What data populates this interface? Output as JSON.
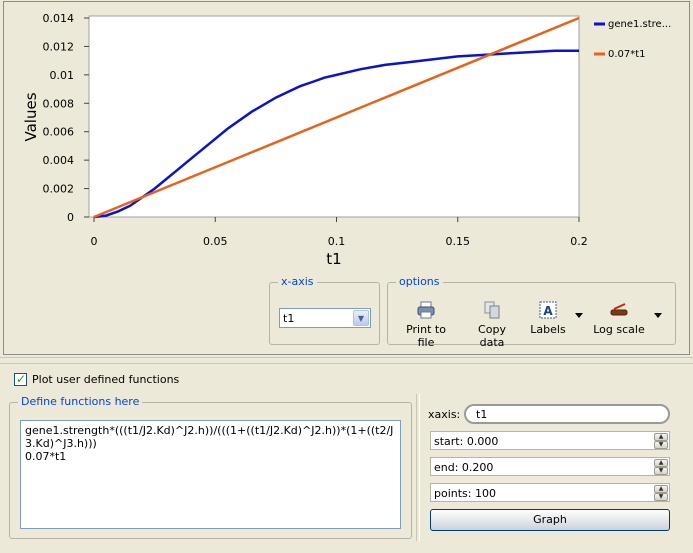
{
  "chart": {
    "ylabel": "Values",
    "xlabel": "t1",
    "y_ticks": [
      "0.014",
      "0.012",
      "0.01",
      "0.008",
      "0.006",
      "0.004",
      "0.002",
      "0"
    ],
    "x_ticks": [
      "0",
      "0.05",
      "0.1",
      "0.15",
      "0.2"
    ],
    "legend": [
      {
        "label": "gene1.stre...",
        "color": "#0a14c8"
      },
      {
        "label": "0.07*t1",
        "color": "#e8631a"
      }
    ]
  },
  "chart_data": {
    "type": "line",
    "xlabel": "t1",
    "ylabel": "Values",
    "xlim": [
      0,
      0.2
    ],
    "ylim": [
      0,
      0.014
    ],
    "series": [
      {
        "name": "gene1.stre...",
        "color": "#0a14c8",
        "x": [
          0,
          0.005,
          0.01,
          0.015,
          0.02,
          0.025,
          0.03,
          0.035,
          0.04,
          0.045,
          0.05,
          0.055,
          0.06,
          0.065,
          0.07,
          0.075,
          0.08,
          0.085,
          0.09,
          0.095,
          0.1,
          0.11,
          0.12,
          0.13,
          0.14,
          0.15,
          0.16,
          0.17,
          0.18,
          0.19,
          0.2
        ],
        "y": [
          0,
          0.0001,
          0.0004,
          0.0008,
          0.0014,
          0.002,
          0.0027,
          0.0034,
          0.0041,
          0.0048,
          0.0055,
          0.0062,
          0.0068,
          0.0074,
          0.0079,
          0.0084,
          0.0088,
          0.0092,
          0.0095,
          0.0098,
          0.01,
          0.0104,
          0.0107,
          0.0109,
          0.0111,
          0.0113,
          0.0114,
          0.0115,
          0.0116,
          0.0117,
          0.0117
        ]
      },
      {
        "name": "0.07*t1",
        "color": "#e8631a",
        "x": [
          0,
          0.2
        ],
        "y": [
          0,
          0.014
        ]
      }
    ]
  },
  "xaxis_group": {
    "title": "x-axis",
    "selected": "t1"
  },
  "options_group": {
    "title": "options",
    "print_label": "Print to file",
    "copy_label": "Copy data",
    "labels_label": "Labels",
    "log_label": "Log scale"
  },
  "plot_user": {
    "checked": true,
    "label": "Plot user defined functions"
  },
  "functions_group": {
    "title": "Define functions here",
    "text": "gene1.strength*(((t1/J2.Kd)^J2.h))/(((1+((t1/J2.Kd)^J2.h))*(1+((t2/J3.Kd)^J3.h)))\n0.07*t1"
  },
  "settings": {
    "xaxis_label": "xaxis:",
    "xaxis_value": "t1",
    "start": "start:  0.000",
    "end": "end:  0.200",
    "points": "points:  100",
    "graph_button": "Graph"
  }
}
